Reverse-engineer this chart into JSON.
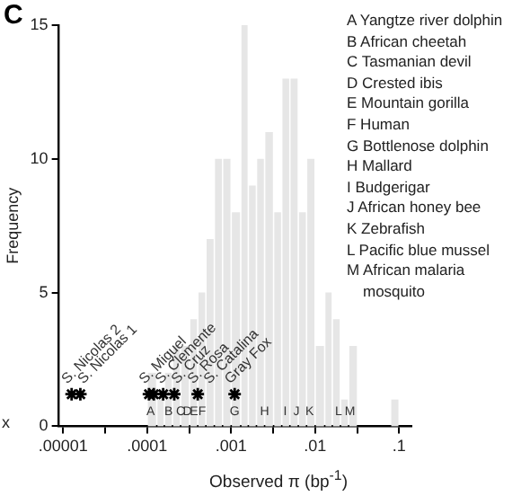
{
  "chart_data": {
    "type": "histogram",
    "title": "C",
    "xlabel": "Observed π (bp$^{-1}$)",
    "ylabel": "Frequency",
    "color": "#e6e6e6",
    "bins": [
      0.0001,
      0.00013,
      0.00016,
      0.0002,
      0.00025,
      0.00032,
      0.0004,
      0.0005,
      0.00063,
      0.00079,
      0.001,
      0.0013,
      0.0016,
      0.002,
      0.0025,
      0.0032,
      0.004,
      0.005,
      0.0063,
      0.0079,
      0.01,
      0.013,
      0.016,
      0.02,
      0.025,
      0.032,
      0.079,
      0.1
    ],
    "values": [
      2,
      1,
      2,
      3,
      3,
      4,
      5,
      7,
      10,
      10,
      8,
      15,
      9,
      10,
      11,
      8,
      13,
      13,
      8,
      10,
      3,
      5,
      4,
      1,
      3,
      0,
      1
    ],
    "series": [
      {
        "type": "scatter",
        "name": "S. Nicolas 2",
        "color": "#000000",
        "x": [
          1.26e-05
        ],
        "values": [
          1.2
        ]
      },
      {
        "type": "scatter",
        "name": "S. Nicolas 1",
        "color": "#000000",
        "x": [
          1.6e-05
        ],
        "values": [
          1.2
        ]
      },
      {
        "type": "scatter",
        "name": "S. Miguel",
        "color": "#000000",
        "x": [
          0.000105
        ],
        "values": [
          1.2
        ]
      },
      {
        "type": "scatter",
        "name": "S. Clemente",
        "color": "#000000",
        "x": [
          0.00012
        ],
        "values": [
          1.2
        ]
      },
      {
        "type": "scatter",
        "name": "S. Cruz",
        "color": "#000000",
        "x": [
          0.000155
        ],
        "values": [
          1.2
        ]
      },
      {
        "type": "scatter",
        "name": "S. Rosa",
        "color": "#000000",
        "x": [
          0.00021
        ],
        "values": [
          1.2
        ]
      },
      {
        "type": "scatter",
        "name": "S. Catalina",
        "color": "#000000",
        "x": [
          0.0004
        ],
        "values": [
          1.2
        ]
      },
      {
        "type": "scatter",
        "name": "Gray Fox",
        "color": "#000000",
        "x": [
          0.0011
        ],
        "values": [
          1.2
        ]
      }
    ],
    "marker": "cross",
    "log": "x",
    "xlim": [
      8.9e-06,
      0.14
    ],
    "xticks": [
      {
        "value": 1e-05,
        "label": ".00001"
      },
      {
        "value": 3.16e-05,
        "label": null
      },
      {
        "value": 0.0001,
        "label": ".0001"
      },
      {
        "value": 0.000316,
        "label": null
      },
      {
        "value": 0.001,
        "label": ".001"
      },
      {
        "value": 0.00316,
        "label": null
      },
      {
        "value": 0.01,
        "label": ".01"
      },
      {
        "value": 0.0316,
        "label": null
      },
      {
        "value": 0.1,
        "label": ".1"
      }
    ],
    "ylim": [
      0,
      15
    ],
    "yticks": [
      0,
      5,
      10,
      15
    ],
    "grid": false,
    "legend": false,
    "annotations": [
      {
        "text": "A",
        "x": 0.00011
      },
      {
        "text": "B",
        "x": 0.00018
      },
      {
        "text": "C",
        "x": 0.00025
      },
      {
        "text": "D",
        "x": 0.0003
      },
      {
        "text": "E",
        "x": 0.00036
      },
      {
        "text": "F",
        "x": 0.00045
      },
      {
        "text": "G",
        "x": 0.0011
      },
      {
        "text": "H",
        "x": 0.0025
      },
      {
        "text": "I",
        "x": 0.0044
      },
      {
        "text": "J",
        "x": 0.006
      },
      {
        "text": "K",
        "x": 0.0086
      },
      {
        "text": "L",
        "x": 0.019
      },
      {
        "text": "M",
        "x": 0.026
      },
      "A Yangtze river dolphin",
      "B African cheetah",
      "C Tasmanian devil",
      "D Crested ibis",
      "E Mountain gorilla",
      "F Human",
      "G Bottlenose dolphin",
      "H Mallard",
      "I Budgerigar",
      "J African honey bee",
      "K Zebrafish",
      "L Pacific blue mussel",
      "M African malaria mosquito",
      "x"
    ]
  }
}
